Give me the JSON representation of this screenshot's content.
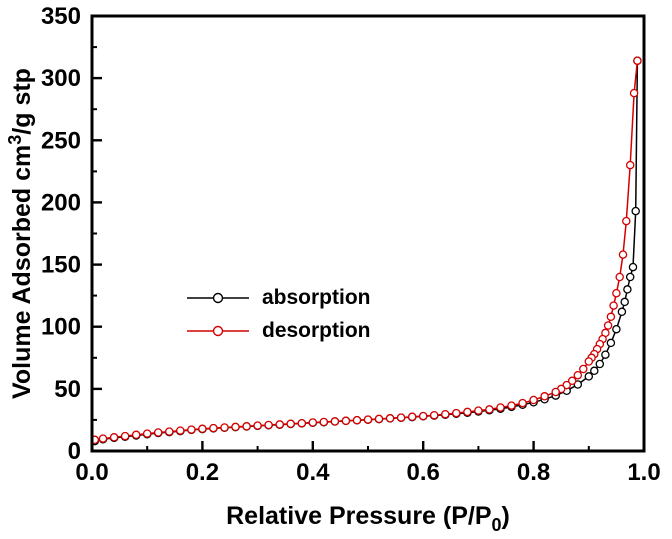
{
  "figure": {
    "background": "#ffffff",
    "frame_color": "#000000"
  },
  "chart_data": {
    "type": "line",
    "title": "",
    "xlabel": "Relative Pressure (P/P0)",
    "xlabel_parts": {
      "prefix": "Relative Pressure (P/P",
      "sub": "0",
      "suffix": ")"
    },
    "ylabel": "Volume Adsorbed cm3/g stp",
    "ylabel_parts": {
      "prefix": "Volume Adsorbed cm",
      "sup": "3",
      "suffix": "/g stp"
    },
    "xlim": [
      0.0,
      1.0
    ],
    "ylim": [
      0,
      350
    ],
    "grid": false,
    "legend_position": "center-left-inside",
    "x_ticks": {
      "values": [
        0.0,
        0.2,
        0.4,
        0.6,
        0.8,
        1.0
      ],
      "labels": [
        "0.0",
        "0.2",
        "0.4",
        "0.6",
        "0.8",
        "1.0"
      ]
    },
    "y_ticks": {
      "values": [
        0,
        50,
        100,
        150,
        200,
        250,
        300,
        350
      ],
      "labels": [
        "0",
        "50",
        "100",
        "150",
        "200",
        "250",
        "300",
        "350"
      ]
    },
    "x_minor_ticks": [
      0.1,
      0.3,
      0.5,
      0.7,
      0.9
    ],
    "y_minor_ticks": [
      25,
      75,
      125,
      175,
      225,
      275,
      325
    ],
    "series": [
      {
        "name": "absorption",
        "color": "#000000",
        "marker": "open-circle",
        "points": [
          [
            0.005,
            8
          ],
          [
            0.02,
            9.5
          ],
          [
            0.04,
            10.5
          ],
          [
            0.06,
            11.5
          ],
          [
            0.08,
            12.5
          ],
          [
            0.1,
            13.5
          ],
          [
            0.12,
            14.5
          ],
          [
            0.14,
            15.2
          ],
          [
            0.16,
            16.0
          ],
          [
            0.18,
            17.0
          ],
          [
            0.2,
            17.6
          ],
          [
            0.22,
            18.2
          ],
          [
            0.24,
            18.7
          ],
          [
            0.26,
            19.2
          ],
          [
            0.28,
            19.7
          ],
          [
            0.3,
            20.2
          ],
          [
            0.32,
            20.7
          ],
          [
            0.34,
            21.2
          ],
          [
            0.36,
            21.7
          ],
          [
            0.38,
            22.2
          ],
          [
            0.4,
            22.7
          ],
          [
            0.42,
            23.2
          ],
          [
            0.44,
            23.7
          ],
          [
            0.46,
            24.2
          ],
          [
            0.48,
            24.7
          ],
          [
            0.5,
            25.2
          ],
          [
            0.52,
            25.7
          ],
          [
            0.54,
            26.2
          ],
          [
            0.56,
            26.8
          ],
          [
            0.58,
            27.3
          ],
          [
            0.6,
            27.9
          ],
          [
            0.62,
            28.5
          ],
          [
            0.64,
            29.2
          ],
          [
            0.66,
            30.0
          ],
          [
            0.68,
            30.8
          ],
          [
            0.7,
            31.8
          ],
          [
            0.72,
            32.8
          ],
          [
            0.74,
            34.0
          ],
          [
            0.76,
            35.5
          ],
          [
            0.78,
            37.2
          ],
          [
            0.8,
            39.2
          ],
          [
            0.82,
            41.6
          ],
          [
            0.84,
            44.6
          ],
          [
            0.86,
            48.4
          ],
          [
            0.88,
            53.5
          ],
          [
            0.9,
            60.0
          ],
          [
            0.91,
            64.5
          ],
          [
            0.92,
            70.0
          ],
          [
            0.93,
            77.5
          ],
          [
            0.94,
            87.0
          ],
          [
            0.95,
            98.0
          ],
          [
            0.96,
            112.0
          ],
          [
            0.965,
            120.0
          ],
          [
            0.97,
            130.0
          ],
          [
            0.975,
            140.0
          ],
          [
            0.98,
            148.0
          ],
          [
            0.985,
            193.0
          ],
          [
            0.988,
            314.0
          ]
        ]
      },
      {
        "name": "desorption",
        "color": "#d40000",
        "marker": "open-circle",
        "points": [
          [
            0.988,
            314
          ],
          [
            0.982,
            288
          ],
          [
            0.975,
            230
          ],
          [
            0.968,
            185
          ],
          [
            0.962,
            158
          ],
          [
            0.956,
            140
          ],
          [
            0.95,
            127
          ],
          [
            0.945,
            117
          ],
          [
            0.94,
            108
          ],
          [
            0.935,
            101
          ],
          [
            0.93,
            95
          ],
          [
            0.925,
            90
          ],
          [
            0.92,
            86
          ],
          [
            0.915,
            82
          ],
          [
            0.91,
            78
          ],
          [
            0.905,
            75
          ],
          [
            0.9,
            72
          ],
          [
            0.89,
            66
          ],
          [
            0.88,
            61
          ],
          [
            0.87,
            56.5
          ],
          [
            0.86,
            53
          ],
          [
            0.85,
            50
          ],
          [
            0.84,
            47.5
          ],
          [
            0.82,
            44
          ],
          [
            0.8,
            41
          ],
          [
            0.78,
            38.5
          ],
          [
            0.76,
            36.5
          ],
          [
            0.74,
            35
          ],
          [
            0.72,
            33.5
          ],
          [
            0.7,
            32.5
          ],
          [
            0.68,
            31.5
          ],
          [
            0.66,
            30.5
          ],
          [
            0.64,
            29.6
          ],
          [
            0.62,
            28.8
          ],
          [
            0.6,
            28.1
          ],
          [
            0.58,
            27.5
          ],
          [
            0.56,
            26.9
          ],
          [
            0.54,
            26.3
          ],
          [
            0.52,
            25.8
          ],
          [
            0.5,
            25.3
          ],
          [
            0.48,
            24.8
          ],
          [
            0.46,
            24.3
          ],
          [
            0.44,
            23.8
          ],
          [
            0.42,
            23.3
          ],
          [
            0.4,
            22.9
          ],
          [
            0.38,
            22.4
          ],
          [
            0.36,
            21.9
          ],
          [
            0.34,
            21.4
          ],
          [
            0.32,
            20.9
          ],
          [
            0.3,
            20.4
          ],
          [
            0.28,
            19.9
          ],
          [
            0.26,
            19.4
          ],
          [
            0.24,
            18.9
          ],
          [
            0.22,
            18.4
          ],
          [
            0.2,
            17.9
          ],
          [
            0.18,
            17.2
          ],
          [
            0.16,
            16.4
          ],
          [
            0.14,
            15.6
          ],
          [
            0.12,
            14.9
          ],
          [
            0.1,
            14.0
          ],
          [
            0.08,
            13.0
          ],
          [
            0.06,
            12.0
          ],
          [
            0.04,
            11.0
          ],
          [
            0.02,
            10.0
          ],
          [
            0.005,
            9.0
          ]
        ]
      }
    ]
  }
}
